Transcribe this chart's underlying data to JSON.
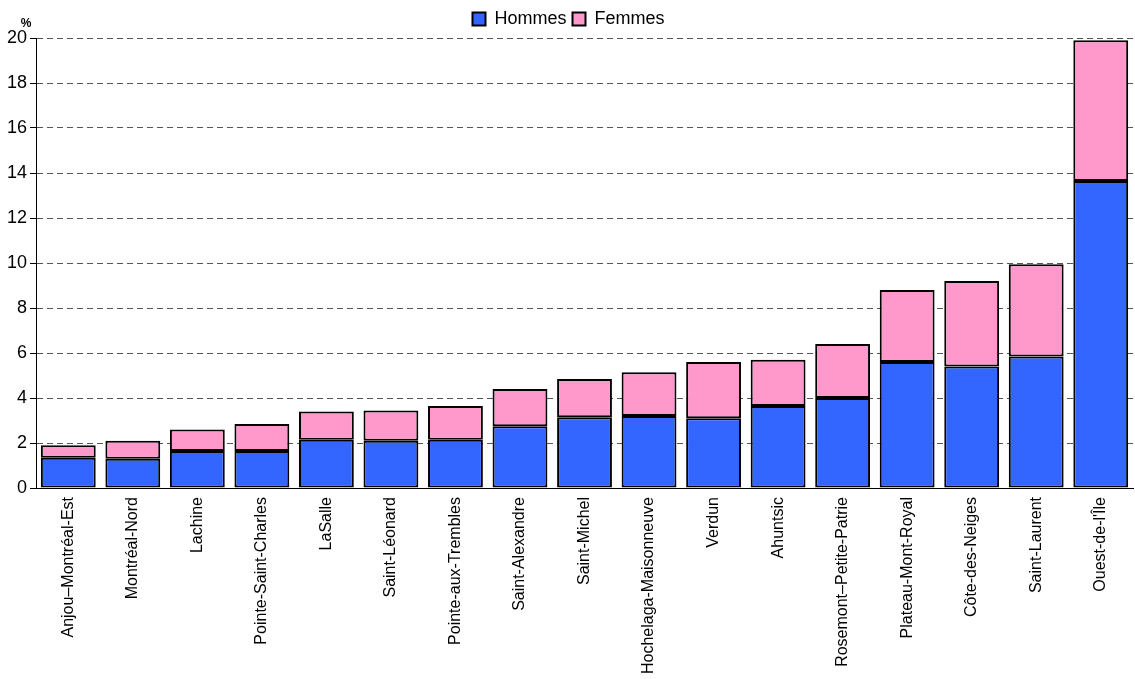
{
  "chart_data": {
    "type": "bar",
    "stacked": true,
    "ylabel": "%",
    "legend": "top",
    "grid": "y",
    "line_style": "dashed",
    "categories": [
      "Anjou–Montréal-Est",
      "Montréal-Nord",
      "Lachine",
      "Pointe-Saint-Charles",
      "LaSalle",
      "Saint-Léonard",
      "Pointe-aux-Trembles",
      "Saint-Alexandre",
      "Saint-Michel",
      "Hochelaga-Maisonneuve",
      "Verdun",
      "Ahuntsic",
      "Rosemont–Petite-Patrie",
      "Plateau-Mont-Royal",
      "Côte-des-Neiges",
      "Saint-Laurent",
      "Ouest-de-l'Île"
    ],
    "series": [
      {
        "name": "Hommes",
        "color": "#3366ff",
        "values": [
          1.35,
          1.3,
          1.65,
          1.65,
          2.15,
          2.1,
          2.15,
          2.75,
          3.15,
          3.2,
          3.1,
          3.65,
          4.0,
          5.6,
          5.4,
          5.85,
          13.65
        ]
      },
      {
        "name": "Femmes",
        "color": "#ff99cc",
        "values": [
          0.55,
          0.8,
          0.95,
          1.2,
          1.25,
          1.35,
          1.5,
          1.65,
          1.7,
          1.95,
          2.5,
          2.05,
          2.4,
          3.2,
          3.8,
          4.1,
          6.25
        ]
      }
    ],
    "ylim": [
      0,
      20
    ],
    "yticks": [
      0,
      2,
      4,
      6,
      8,
      10,
      12,
      14,
      16,
      18,
      20
    ]
  }
}
